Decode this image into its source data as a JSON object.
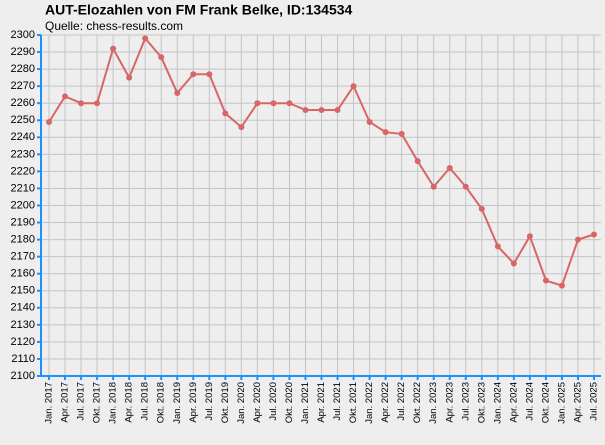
{
  "chart_data": {
    "type": "line",
    "title": "AUT-Elozahlen von FM Frank Belke, ID:134534",
    "subtitle": "Quelle: chess-results.com",
    "categories": [
      "Jan. 2017",
      "Apr. 2017",
      "Jul. 2017",
      "Okt. 2017",
      "Jan. 2018",
      "Apr. 2018",
      "Jul. 2018",
      "Okt. 2018",
      "Jan. 2019",
      "Apr. 2019",
      "Jul. 2019",
      "Okt. 2019",
      "Jan. 2020",
      "Apr. 2020",
      "Jul. 2020",
      "Okt. 2020",
      "Jan. 2021",
      "Apr. 2021",
      "Jul. 2021",
      "Okt. 2021",
      "Jan. 2022",
      "Apr. 2022",
      "Jul. 2022",
      "Okt. 2022",
      "Jan. 2023",
      "Apr. 2023",
      "Jul. 2023",
      "Okt. 2023",
      "Jan. 2024",
      "Apr. 2024",
      "Jul. 2024",
      "Okt. 2024",
      "Jan. 2025",
      "Apr. 2025",
      "Jul. 2025"
    ],
    "series": [
      {
        "color": "#d96666",
        "values": [
          2249,
          2264,
          2260,
          2260,
          2292,
          2275,
          2298,
          2287,
          2266,
          2277,
          2277,
          2254,
          2246,
          2260,
          2260,
          2260,
          2256,
          2256,
          2256,
          2270,
          2249,
          2243,
          2242,
          2226,
          2211,
          2222,
          2211,
          2198,
          2176,
          2166,
          2182,
          2156,
          2153,
          2180,
          2183
        ]
      }
    ],
    "ylim": [
      2100,
      2300
    ],
    "yticks": [
      2100,
      2110,
      2120,
      2130,
      2140,
      2150,
      2160,
      2170,
      2180,
      2190,
      2200,
      2210,
      2220,
      2230,
      2240,
      2250,
      2260,
      2270,
      2280,
      2290,
      2300
    ],
    "grid": true,
    "axis_color": "#1e90ff"
  }
}
